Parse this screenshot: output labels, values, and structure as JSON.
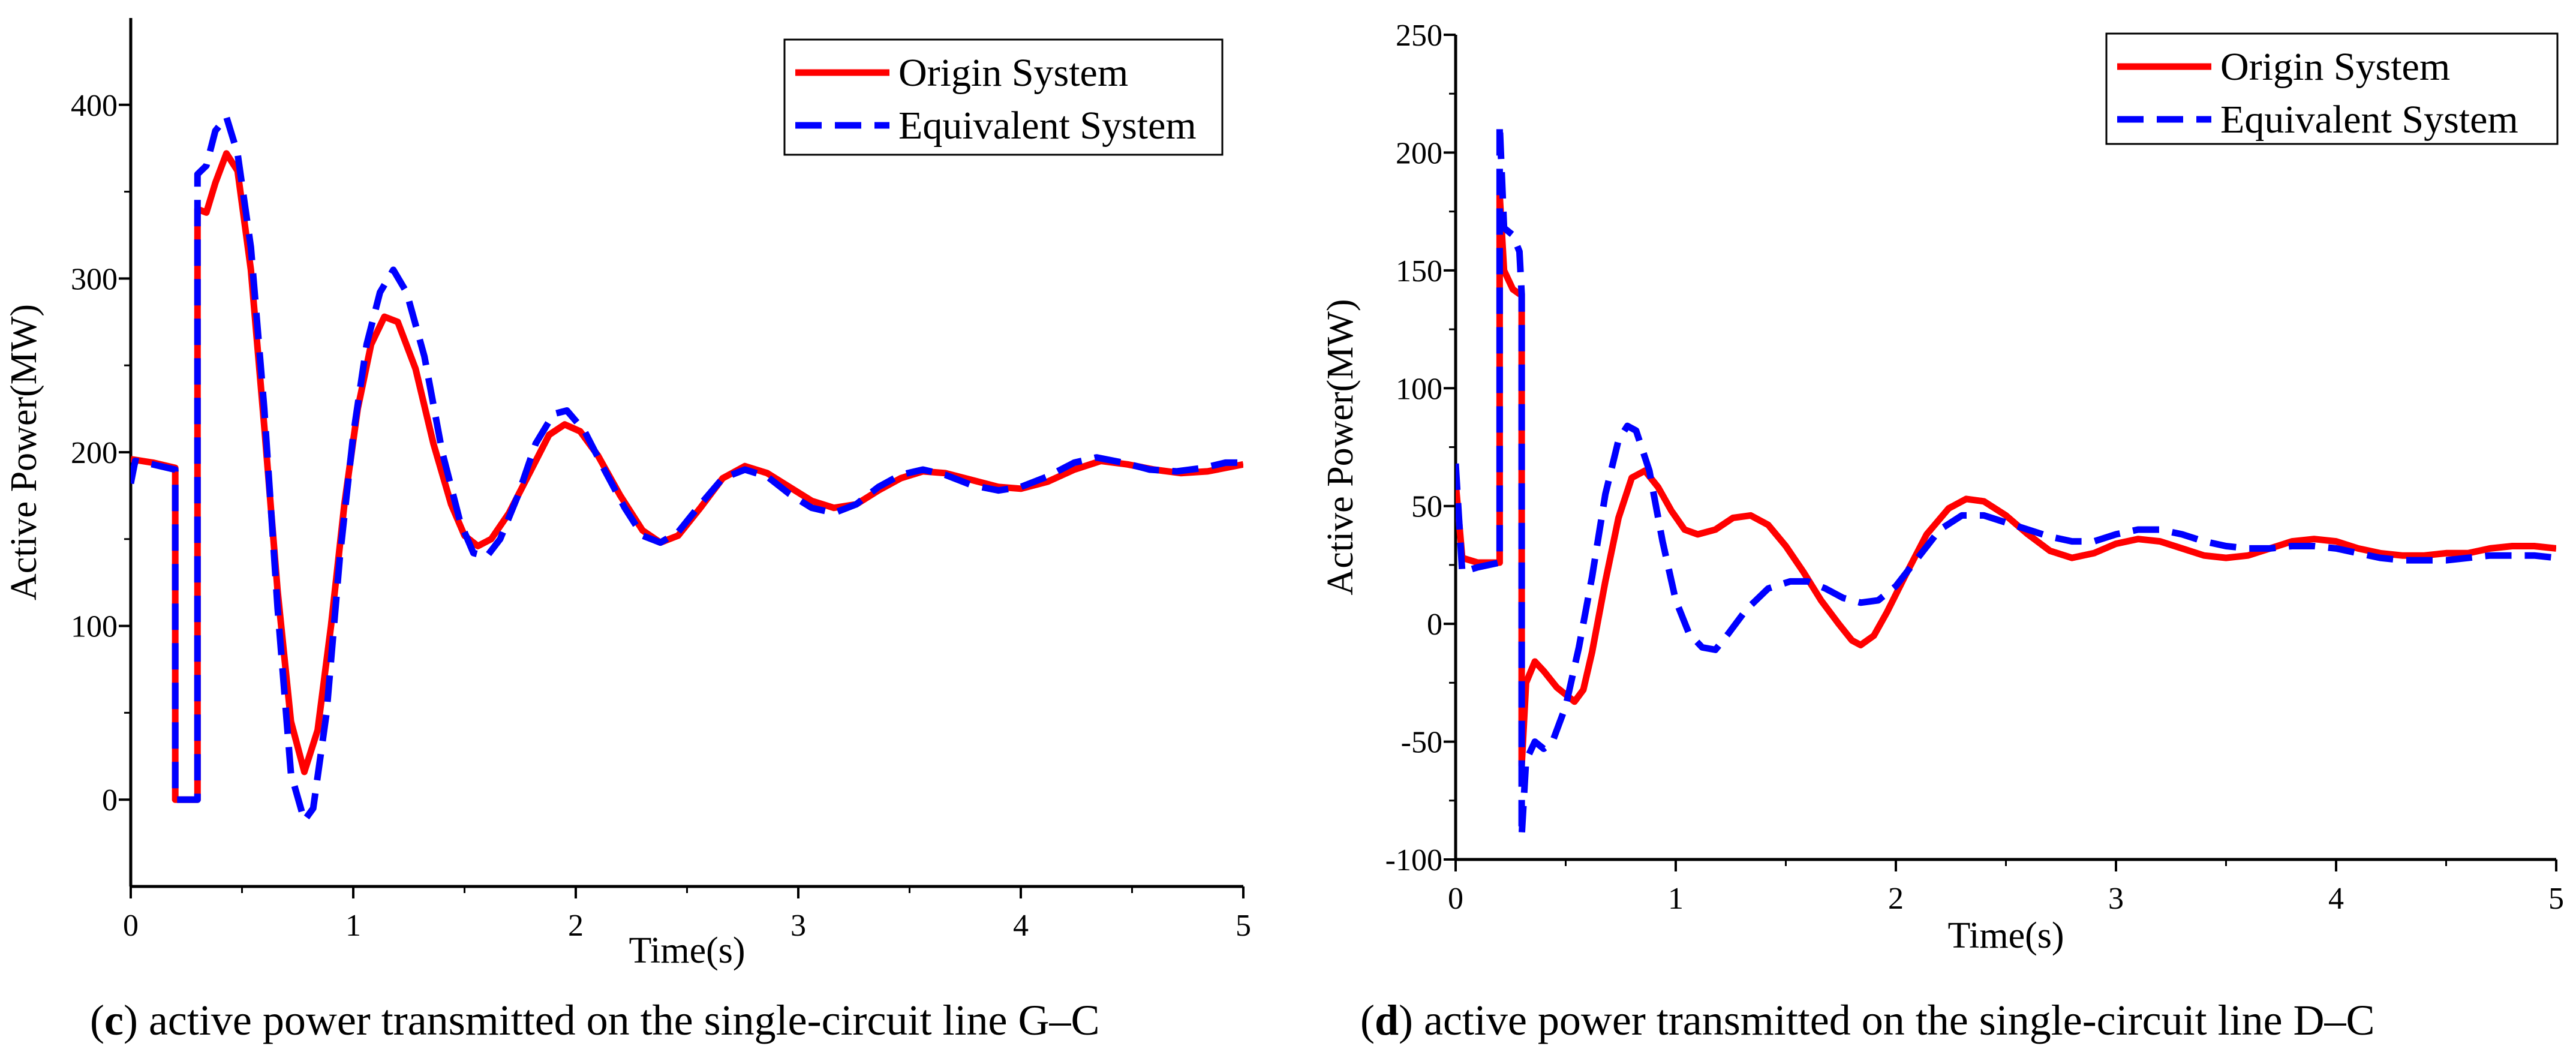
{
  "colors": {
    "origin": "#ff0000",
    "equivalent": "#0000ff",
    "axis": "#000000"
  },
  "chart_data": [
    {
      "id": "c",
      "type": "line",
      "caption_letter": "c",
      "caption_text": " active power transmitted on the single-circuit line G–C",
      "xlabel": "Time(s)",
      "ylabel": "Active Power(MW)",
      "xlim": [
        0,
        5
      ],
      "ylim": [
        -50,
        450
      ],
      "xticks": [
        0,
        1,
        2,
        3,
        4,
        5
      ],
      "yticks": [
        0,
        100,
        200,
        300,
        400
      ],
      "legend": {
        "position": "top-right",
        "entries": [
          "Origin System",
          "Equivalent System"
        ]
      },
      "series": [
        {
          "name": "Origin System",
          "style": "solid",
          "points": [
            [
              0,
              196
            ],
            [
              0.1,
              194
            ],
            [
              0.2,
              191
            ],
            [
              0.2,
              0
            ],
            [
              0.3,
              0
            ],
            [
              0.3,
              340
            ],
            [
              0.34,
              338
            ],
            [
              0.38,
              355
            ],
            [
              0.43,
              372
            ],
            [
              0.48,
              362
            ],
            [
              0.54,
              305
            ],
            [
              0.6,
              215
            ],
            [
              0.66,
              120
            ],
            [
              0.72,
              45
            ],
            [
              0.78,
              16
            ],
            [
              0.84,
              40
            ],
            [
              0.9,
              100
            ],
            [
              0.96,
              170
            ],
            [
              1.02,
              225
            ],
            [
              1.08,
              262
            ],
            [
              1.14,
              278
            ],
            [
              1.2,
              275
            ],
            [
              1.28,
              248
            ],
            [
              1.36,
              205
            ],
            [
              1.44,
              170
            ],
            [
              1.5,
              152
            ],
            [
              1.56,
              146
            ],
            [
              1.62,
              150
            ],
            [
              1.7,
              165
            ],
            [
              1.8,
              190
            ],
            [
              1.88,
              210
            ],
            [
              1.95,
              216
            ],
            [
              2.02,
              212
            ],
            [
              2.1,
              198
            ],
            [
              2.2,
              175
            ],
            [
              2.3,
              155
            ],
            [
              2.38,
              148
            ],
            [
              2.46,
              152
            ],
            [
              2.56,
              168
            ],
            [
              2.66,
              185
            ],
            [
              2.76,
              192
            ],
            [
              2.86,
              188
            ],
            [
              2.96,
              180
            ],
            [
              3.06,
              172
            ],
            [
              3.16,
              168
            ],
            [
              3.26,
              170
            ],
            [
              3.36,
              178
            ],
            [
              3.46,
              185
            ],
            [
              3.56,
              189
            ],
            [
              3.66,
              188
            ],
            [
              3.78,
              184
            ],
            [
              3.9,
              180
            ],
            [
              4.0,
              179
            ],
            [
              4.12,
              183
            ],
            [
              4.24,
              190
            ],
            [
              4.36,
              195
            ],
            [
              4.48,
              193
            ],
            [
              4.6,
              190
            ],
            [
              4.72,
              188
            ],
            [
              4.84,
              189
            ],
            [
              5.0,
              193
            ]
          ]
        },
        {
          "name": "Equivalent System",
          "style": "dashed",
          "points": [
            [
              0,
              182
            ],
            [
              0.02,
              195
            ],
            [
              0.1,
              193
            ],
            [
              0.2,
              190
            ],
            [
              0.2,
              0
            ],
            [
              0.3,
              0
            ],
            [
              0.3,
              360
            ],
            [
              0.34,
              365
            ],
            [
              0.38,
              385
            ],
            [
              0.43,
              393
            ],
            [
              0.48,
              372
            ],
            [
              0.54,
              318
            ],
            [
              0.6,
              225
            ],
            [
              0.66,
              110
            ],
            [
              0.72,
              15
            ],
            [
              0.78,
              -12
            ],
            [
              0.82,
              -5
            ],
            [
              0.88,
              50
            ],
            [
              0.94,
              140
            ],
            [
              1.0,
              210
            ],
            [
              1.06,
              262
            ],
            [
              1.12,
              292
            ],
            [
              1.18,
              305
            ],
            [
              1.24,
              292
            ],
            [
              1.32,
              255
            ],
            [
              1.4,
              200
            ],
            [
              1.48,
              160
            ],
            [
              1.54,
              142
            ],
            [
              1.6,
              140
            ],
            [
              1.66,
              150
            ],
            [
              1.74,
              175
            ],
            [
              1.82,
              205
            ],
            [
              1.9,
              222
            ],
            [
              1.96,
              224
            ],
            [
              2.04,
              212
            ],
            [
              2.12,
              192
            ],
            [
              2.22,
              168
            ],
            [
              2.3,
              152
            ],
            [
              2.38,
              148
            ],
            [
              2.46,
              154
            ],
            [
              2.56,
              170
            ],
            [
              2.66,
              185
            ],
            [
              2.76,
              190
            ],
            [
              2.86,
              186
            ],
            [
              2.96,
              176
            ],
            [
              3.06,
              168
            ],
            [
              3.16,
              165
            ],
            [
              3.26,
              170
            ],
            [
              3.36,
              180
            ],
            [
              3.46,
              187
            ],
            [
              3.56,
              190
            ],
            [
              3.66,
              187
            ],
            [
              3.78,
              181
            ],
            [
              3.9,
              178
            ],
            [
              4.0,
              180
            ],
            [
              4.12,
              186
            ],
            [
              4.24,
              194
            ],
            [
              4.34,
              197
            ],
            [
              4.46,
              194
            ],
            [
              4.58,
              190
            ],
            [
              4.7,
              189
            ],
            [
              4.82,
              191
            ],
            [
              4.92,
              194
            ],
            [
              5.0,
              194
            ]
          ]
        }
      ]
    },
    {
      "id": "d",
      "type": "line",
      "caption_letter": "d",
      "caption_text": " active power transmitted on the single-circuit line D–C",
      "xlabel": "Time(s)",
      "ylabel": "Active Power(MW)",
      "xlim": [
        0,
        5
      ],
      "ylim": [
        -100,
        250
      ],
      "xticks": [
        0,
        1,
        2,
        3,
        4,
        5
      ],
      "yticks": [
        -100,
        -50,
        0,
        50,
        100,
        150,
        200,
        250
      ],
      "legend": {
        "position": "top-right",
        "entries": [
          "Origin System",
          "Equivalent System"
        ]
      },
      "series": [
        {
          "name": "Origin System",
          "style": "solid",
          "points": [
            [
              0,
              60
            ],
            [
              0.03,
              28
            ],
            [
              0.1,
              26
            ],
            [
              0.2,
              26
            ],
            [
              0.2,
              182
            ],
            [
              0.22,
              150
            ],
            [
              0.26,
              142
            ],
            [
              0.29,
              140
            ],
            [
              0.3,
              140
            ],
            [
              0.3,
              -60
            ],
            [
              0.32,
              -25
            ],
            [
              0.36,
              -16
            ],
            [
              0.4,
              -20
            ],
            [
              0.46,
              -27
            ],
            [
              0.5,
              -30
            ],
            [
              0.54,
              -33
            ],
            [
              0.58,
              -28
            ],
            [
              0.62,
              -12
            ],
            [
              0.68,
              18
            ],
            [
              0.74,
              45
            ],
            [
              0.8,
              62
            ],
            [
              0.86,
              65
            ],
            [
              0.92,
              58
            ],
            [
              0.98,
              48
            ],
            [
              1.04,
              40
            ],
            [
              1.1,
              38
            ],
            [
              1.18,
              40
            ],
            [
              1.26,
              45
            ],
            [
              1.34,
              46
            ],
            [
              1.42,
              42
            ],
            [
              1.5,
              33
            ],
            [
              1.58,
              22
            ],
            [
              1.66,
              10
            ],
            [
              1.74,
              0
            ],
            [
              1.8,
              -7
            ],
            [
              1.84,
              -9
            ],
            [
              1.9,
              -5
            ],
            [
              1.96,
              5
            ],
            [
              2.04,
              20
            ],
            [
              2.14,
              38
            ],
            [
              2.24,
              49
            ],
            [
              2.32,
              53
            ],
            [
              2.4,
              52
            ],
            [
              2.5,
              46
            ],
            [
              2.6,
              38
            ],
            [
              2.7,
              31
            ],
            [
              2.8,
              28
            ],
            [
              2.9,
              30
            ],
            [
              3.0,
              34
            ],
            [
              3.1,
              36
            ],
            [
              3.2,
              35
            ],
            [
              3.3,
              32
            ],
            [
              3.4,
              29
            ],
            [
              3.5,
              28
            ],
            [
              3.6,
              29
            ],
            [
              3.7,
              32
            ],
            [
              3.8,
              35
            ],
            [
              3.9,
              36
            ],
            [
              4.0,
              35
            ],
            [
              4.1,
              32
            ],
            [
              4.2,
              30
            ],
            [
              4.3,
              29
            ],
            [
              4.4,
              29
            ],
            [
              4.5,
              30
            ],
            [
              4.6,
              30
            ],
            [
              4.7,
              32
            ],
            [
              4.8,
              33
            ],
            [
              4.9,
              33
            ],
            [
              5.0,
              32
            ]
          ]
        },
        {
          "name": "Equivalent System",
          "style": "dashed",
          "points": [
            [
              0,
              68
            ],
            [
              0.03,
              22
            ],
            [
              0.1,
              24
            ],
            [
              0.2,
              26
            ],
            [
              0.2,
              212
            ],
            [
              0.22,
              168
            ],
            [
              0.26,
              165
            ],
            [
              0.29,
              158
            ],
            [
              0.3,
              140
            ],
            [
              0.3,
              -90
            ],
            [
              0.32,
              -58
            ],
            [
              0.36,
              -50
            ],
            [
              0.4,
              -53
            ],
            [
              0.44,
              -50
            ],
            [
              0.5,
              -35
            ],
            [
              0.56,
              -10
            ],
            [
              0.62,
              20
            ],
            [
              0.68,
              55
            ],
            [
              0.74,
              78
            ],
            [
              0.78,
              84
            ],
            [
              0.82,
              82
            ],
            [
              0.88,
              65
            ],
            [
              0.94,
              35
            ],
            [
              1.0,
              10
            ],
            [
              1.06,
              -4
            ],
            [
              1.12,
              -10
            ],
            [
              1.18,
              -11
            ],
            [
              1.24,
              -4
            ],
            [
              1.32,
              6
            ],
            [
              1.42,
              15
            ],
            [
              1.52,
              18
            ],
            [
              1.6,
              18
            ],
            [
              1.68,
              15
            ],
            [
              1.76,
              11
            ],
            [
              1.84,
              9
            ],
            [
              1.92,
              10
            ],
            [
              2.0,
              16
            ],
            [
              2.1,
              28
            ],
            [
              2.2,
              40
            ],
            [
              2.3,
              46
            ],
            [
              2.4,
              46
            ],
            [
              2.5,
              43
            ],
            [
              2.6,
              40
            ],
            [
              2.7,
              37
            ],
            [
              2.8,
              35
            ],
            [
              2.9,
              35
            ],
            [
              3.0,
              38
            ],
            [
              3.1,
              40
            ],
            [
              3.2,
              40
            ],
            [
              3.3,
              38
            ],
            [
              3.4,
              35
            ],
            [
              3.5,
              33
            ],
            [
              3.6,
              32
            ],
            [
              3.7,
              32
            ],
            [
              3.8,
              33
            ],
            [
              3.9,
              33
            ],
            [
              4.0,
              32
            ],
            [
              4.1,
              30
            ],
            [
              4.2,
              28
            ],
            [
              4.3,
              27
            ],
            [
              4.4,
              27
            ],
            [
              4.5,
              27
            ],
            [
              4.6,
              28
            ],
            [
              4.7,
              29
            ],
            [
              4.8,
              29
            ],
            [
              4.9,
              29
            ],
            [
              5.0,
              28
            ]
          ]
        }
      ]
    }
  ]
}
